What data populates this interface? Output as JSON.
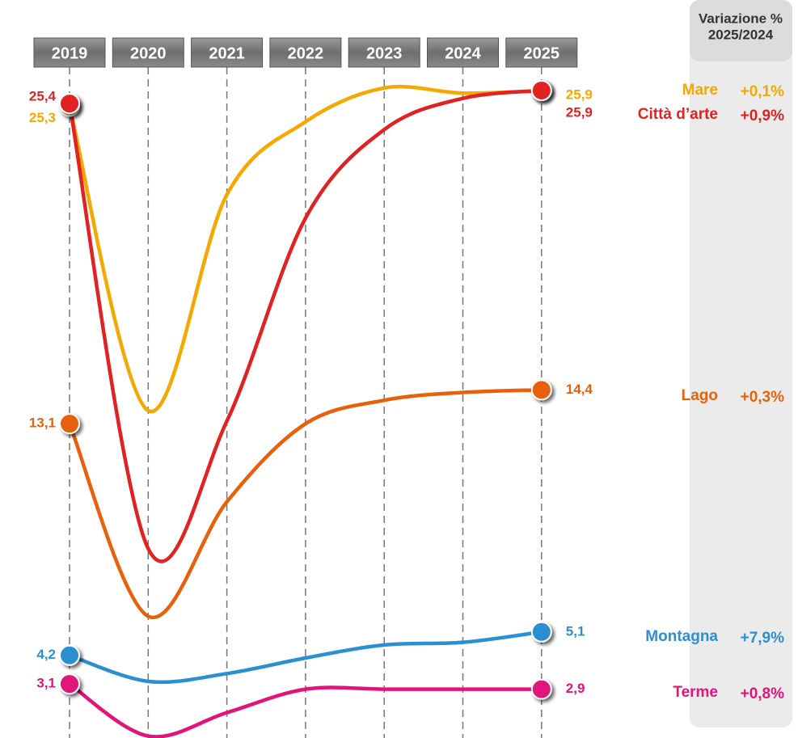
{
  "chart_data": {
    "type": "line",
    "change_header": [
      "Variazione %",
      "2025/2024"
    ],
    "categories": [
      "2019",
      "2020",
      "2021",
      "2022",
      "2023",
      "2024",
      "2025"
    ],
    "series": [
      {
        "name": "Mare",
        "color": "#f5a800",
        "change": "+0,1%",
        "values": [
          25.3,
          13.6,
          21.9,
          24.7,
          26.0,
          25.8,
          25.9
        ],
        "value_labels": [
          "25,3",
          null,
          null,
          null,
          null,
          null,
          "25,9"
        ]
      },
      {
        "name": "Città d’arte",
        "color": "#e02222",
        "change": "+0,9%",
        "values": [
          25.4,
          8.3,
          13.2,
          21.0,
          24.4,
          25.6,
          25.9
        ],
        "value_labels": [
          "25,4",
          null,
          null,
          null,
          null,
          null,
          "25,9"
        ]
      },
      {
        "name": "Lago",
        "color": "#e8600a",
        "change": "+0,3%",
        "values": [
          13.1,
          5.7,
          10.1,
          13.1,
          14.0,
          14.3,
          14.4
        ],
        "value_labels": [
          "13,1",
          null,
          null,
          null,
          null,
          null,
          "14,4"
        ]
      },
      {
        "name": "Montagna",
        "color": "#2b8fd0",
        "change": "+7,9%",
        "values": [
          4.2,
          3.2,
          3.5,
          4.1,
          4.6,
          4.7,
          5.1
        ],
        "value_labels": [
          "4,2",
          null,
          null,
          null,
          null,
          null,
          "5,1"
        ]
      },
      {
        "name": "Terme",
        "color": "#e0147a",
        "change": "+0,8%",
        "values": [
          3.1,
          1.1,
          2.0,
          2.9,
          2.9,
          2.9,
          2.9
        ],
        "value_labels": [
          "3,1",
          null,
          null,
          null,
          null,
          null,
          "2,9"
        ]
      }
    ]
  }
}
